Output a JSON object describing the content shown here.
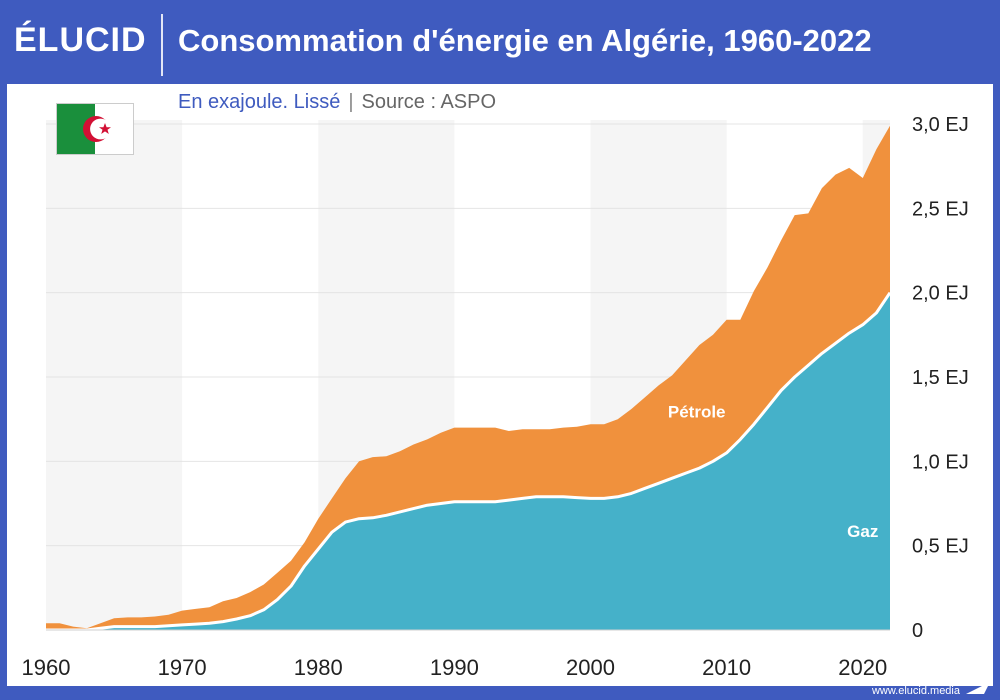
{
  "header": {
    "brand": "ÉLUCID",
    "title": "Consommation d'énergie en Algérie, 1960-2022"
  },
  "subtitle": {
    "unit": "En exajoule. Lissé",
    "separator": "|",
    "source": "Source : ASPO"
  },
  "footer": {
    "site": "www.elucid.media"
  },
  "colors": {
    "frame": "#3f5bbf",
    "gas": "#45b1c9",
    "oil": "#f0913d",
    "band": "#f5f5f5",
    "flag_green": "#1a8f3c",
    "flag_red": "#d21034"
  },
  "icons": {
    "flag": "algeria-flag-icon",
    "logo_mark": "elucid-mark-icon"
  },
  "chart_data": {
    "type": "area",
    "stacked": true,
    "x": [
      1960,
      1961,
      1962,
      1963,
      1964,
      1965,
      1966,
      1967,
      1968,
      1969,
      1970,
      1971,
      1972,
      1973,
      1974,
      1975,
      1976,
      1977,
      1978,
      1979,
      1980,
      1981,
      1982,
      1983,
      1984,
      1985,
      1986,
      1987,
      1988,
      1989,
      1990,
      1991,
      1992,
      1993,
      1994,
      1995,
      1996,
      1997,
      1998,
      1999,
      2000,
      2001,
      2002,
      2003,
      2004,
      2005,
      2006,
      2007,
      2008,
      2009,
      2010,
      2011,
      2012,
      2013,
      2014,
      2015,
      2016,
      2017,
      2018,
      2019,
      2020,
      2021,
      2022
    ],
    "series": [
      {
        "name": "Gaz",
        "label": "Gaz",
        "color": "#45b1c9",
        "values": [
          0,
          0,
          0,
          0,
          0.01,
          0.02,
          0.02,
          0.02,
          0.02,
          0.025,
          0.03,
          0.035,
          0.04,
          0.05,
          0.065,
          0.085,
          0.12,
          0.18,
          0.26,
          0.38,
          0.48,
          0.58,
          0.64,
          0.66,
          0.665,
          0.68,
          0.7,
          0.72,
          0.74,
          0.75,
          0.76,
          0.76,
          0.76,
          0.76,
          0.77,
          0.78,
          0.79,
          0.79,
          0.79,
          0.785,
          0.78,
          0.78,
          0.79,
          0.81,
          0.84,
          0.87,
          0.9,
          0.93,
          0.96,
          1.0,
          1.05,
          1.13,
          1.22,
          1.32,
          1.42,
          1.5,
          1.57,
          1.64,
          1.7,
          1.76,
          1.81,
          1.88,
          2.0
        ]
      },
      {
        "name": "Pétrole",
        "label": "Pétrole",
        "color": "#f0913d",
        "values": [
          0.04,
          0.04,
          0.02,
          0.01,
          0.03,
          0.05,
          0.055,
          0.055,
          0.06,
          0.065,
          0.085,
          0.09,
          0.095,
          0.12,
          0.125,
          0.14,
          0.15,
          0.16,
          0.15,
          0.14,
          0.18,
          0.2,
          0.26,
          0.34,
          0.36,
          0.35,
          0.36,
          0.38,
          0.39,
          0.42,
          0.44,
          0.44,
          0.44,
          0.44,
          0.41,
          0.41,
          0.4,
          0.4,
          0.41,
          0.42,
          0.44,
          0.44,
          0.46,
          0.5,
          0.54,
          0.58,
          0.61,
          0.67,
          0.73,
          0.75,
          0.79,
          0.71,
          0.79,
          0.83,
          0.89,
          0.96,
          0.9,
          0.98,
          1.0,
          0.98,
          0.87,
          0.97,
          0.99
        ]
      }
    ],
    "y_ticks": [
      "0",
      "0,5 EJ",
      "1,0 EJ",
      "1,5 EJ",
      "2,0 EJ",
      "2,5 EJ",
      "3,0 EJ"
    ],
    "y_tick_values": [
      0,
      0.5,
      1.0,
      1.5,
      2.0,
      2.5,
      3.0
    ],
    "x_ticks": [
      "1960",
      "1970",
      "1980",
      "1990",
      "2000",
      "2010",
      "2020"
    ],
    "x_tick_values": [
      1960,
      1970,
      1980,
      1990,
      2000,
      2010,
      2020
    ],
    "xlim": [
      1960,
      2022
    ],
    "ylim": [
      0,
      3.0
    ],
    "grid": true,
    "legend": "inline labels",
    "ylabel_position": "right"
  }
}
